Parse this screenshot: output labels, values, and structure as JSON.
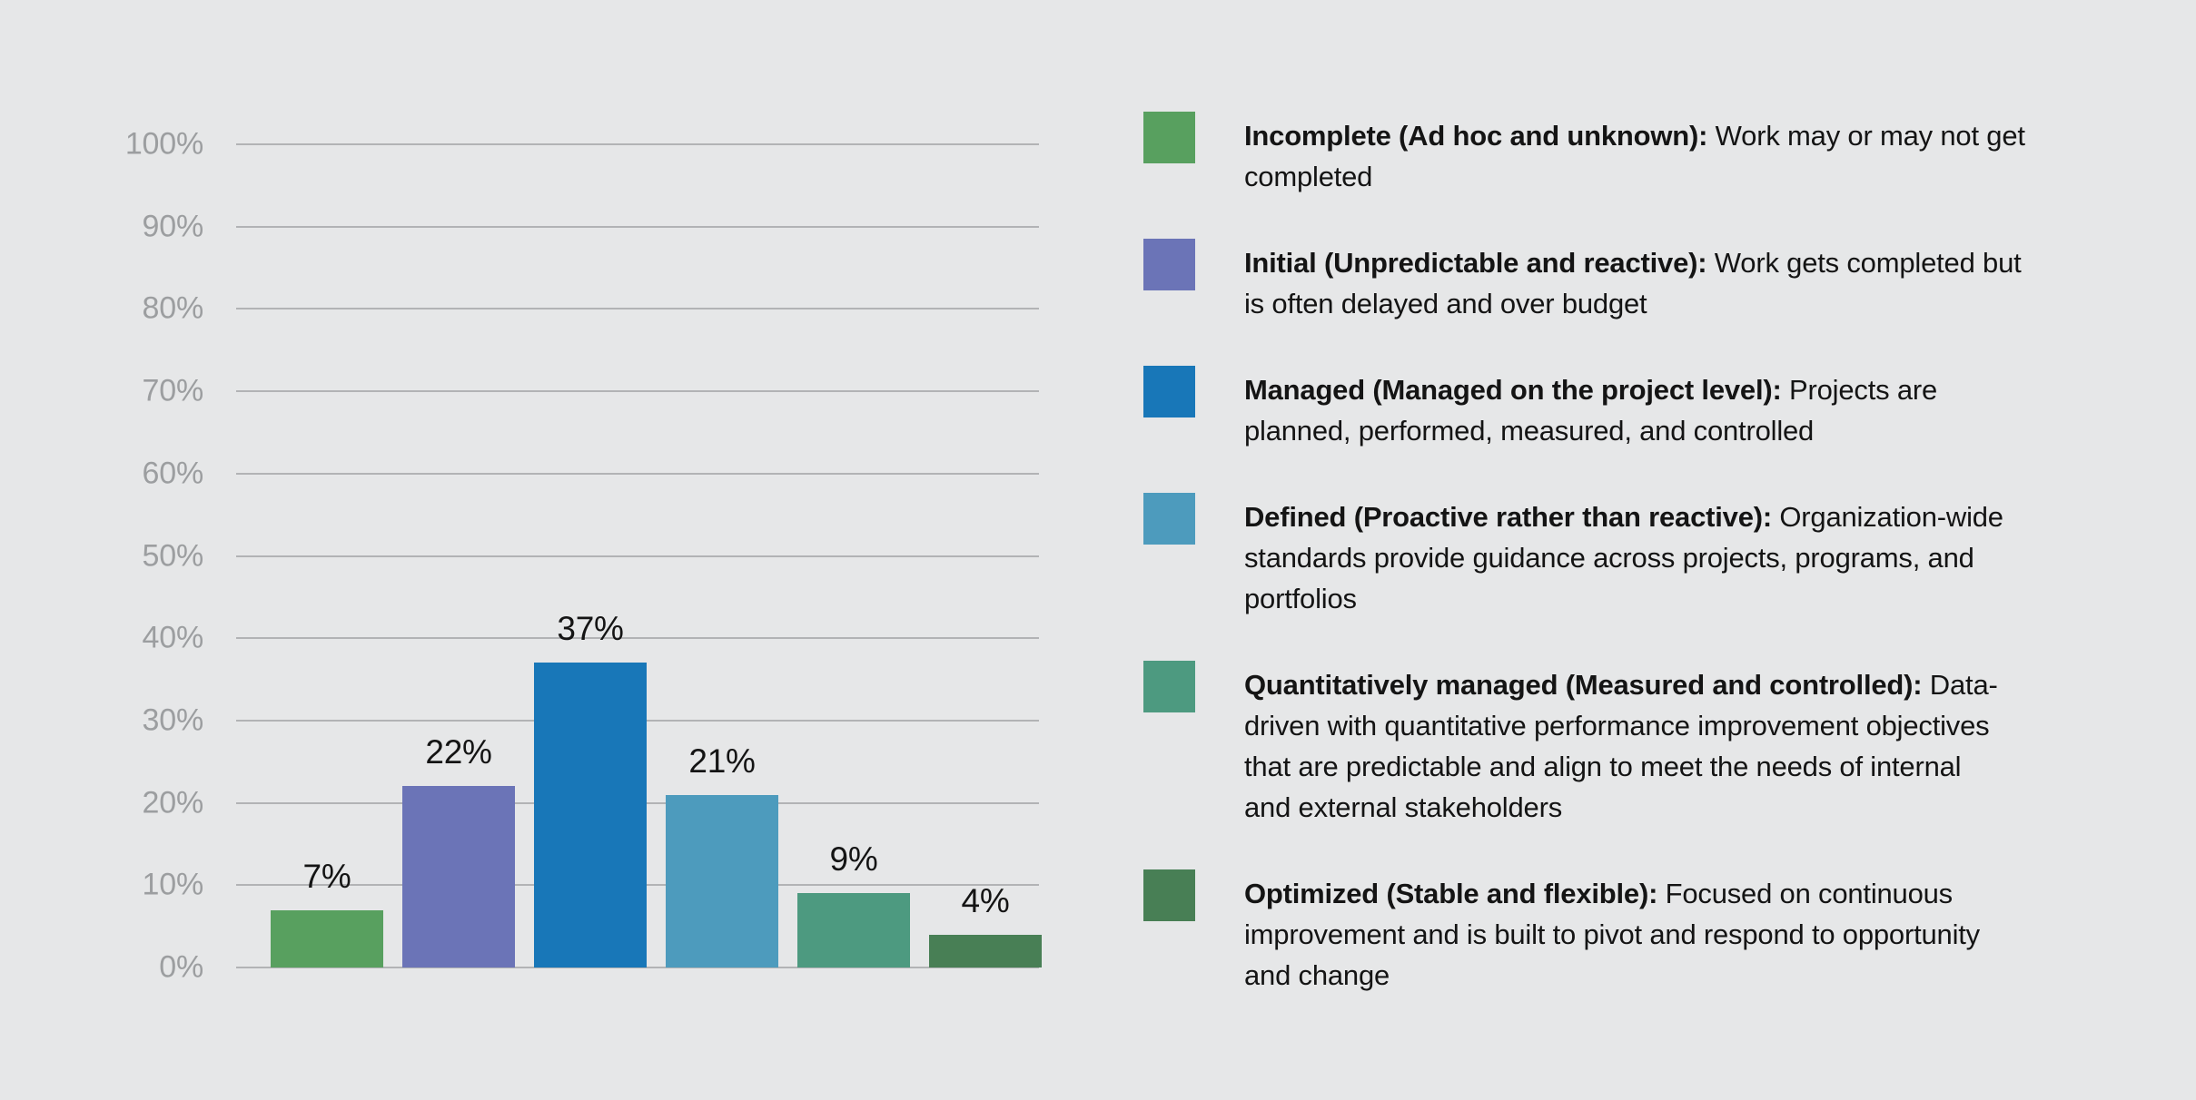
{
  "colors": {
    "background": "#E6E7E8",
    "gridline": "#B2B3B5",
    "axis_tick_text": "#9C9EA0",
    "value_label_text": "#141414"
  },
  "chart_data": {
    "type": "bar",
    "title": "",
    "xlabel": "",
    "ylabel": "",
    "categories": [
      "Incomplete",
      "Initial",
      "Managed",
      "Defined",
      "Quantitatively managed",
      "Optimized"
    ],
    "values": [
      7,
      22,
      37,
      21,
      9,
      4
    ],
    "value_labels": [
      "7%",
      "22%",
      "37%",
      "21%",
      "9%",
      "4%"
    ],
    "bar_colors": [
      "#58A05F",
      "#6B74B7",
      "#1877B8",
      "#4D9BBD",
      "#4D9A80",
      "#487F55"
    ],
    "ylim": [
      0,
      100
    ],
    "yticks": [
      0,
      10,
      20,
      30,
      40,
      50,
      60,
      70,
      80,
      90,
      100
    ],
    "ytick_labels": [
      "0%",
      "10%",
      "20%",
      "30%",
      "40%",
      "50%",
      "60%",
      "70%",
      "80%",
      "90%",
      "100%"
    ],
    "grid": "horizontal",
    "legend_position": "right",
    "x_axis_labels_shown": false
  },
  "legend": {
    "items": [
      {
        "color": "#58A05F",
        "term": "Incomplete (Ad hoc and unknown):",
        "description": "Work may or may not get\ncompleted"
      },
      {
        "color": "#6B74B7",
        "term": "Initial (Unpredictable and reactive):",
        "description": "Work gets completed but\nis often delayed and over budget"
      },
      {
        "color": "#1877B8",
        "term": "Managed (Managed on the project level):",
        "description": "Projects are\nplanned, performed, measured, and controlled"
      },
      {
        "color": "#4D9BBD",
        "term": "Defined (Proactive rather than reactive):",
        "description": "Organization-wide\nstandards provide guidance across projects, programs, and\nportfolios"
      },
      {
        "color": "#4D9A80",
        "term": "Quantitatively managed (Measured and controlled):",
        "description": "Data-\ndriven with quantitative performance improvement objectives\nthat are predictable and align to meet the needs of internal\nand external stakeholders"
      },
      {
        "color": "#487F55",
        "term": "Optimized (Stable and flexible):",
        "description": "Focused on continuous\nimprovement and is built to pivot and respond to opportunity\nand change"
      }
    ]
  }
}
